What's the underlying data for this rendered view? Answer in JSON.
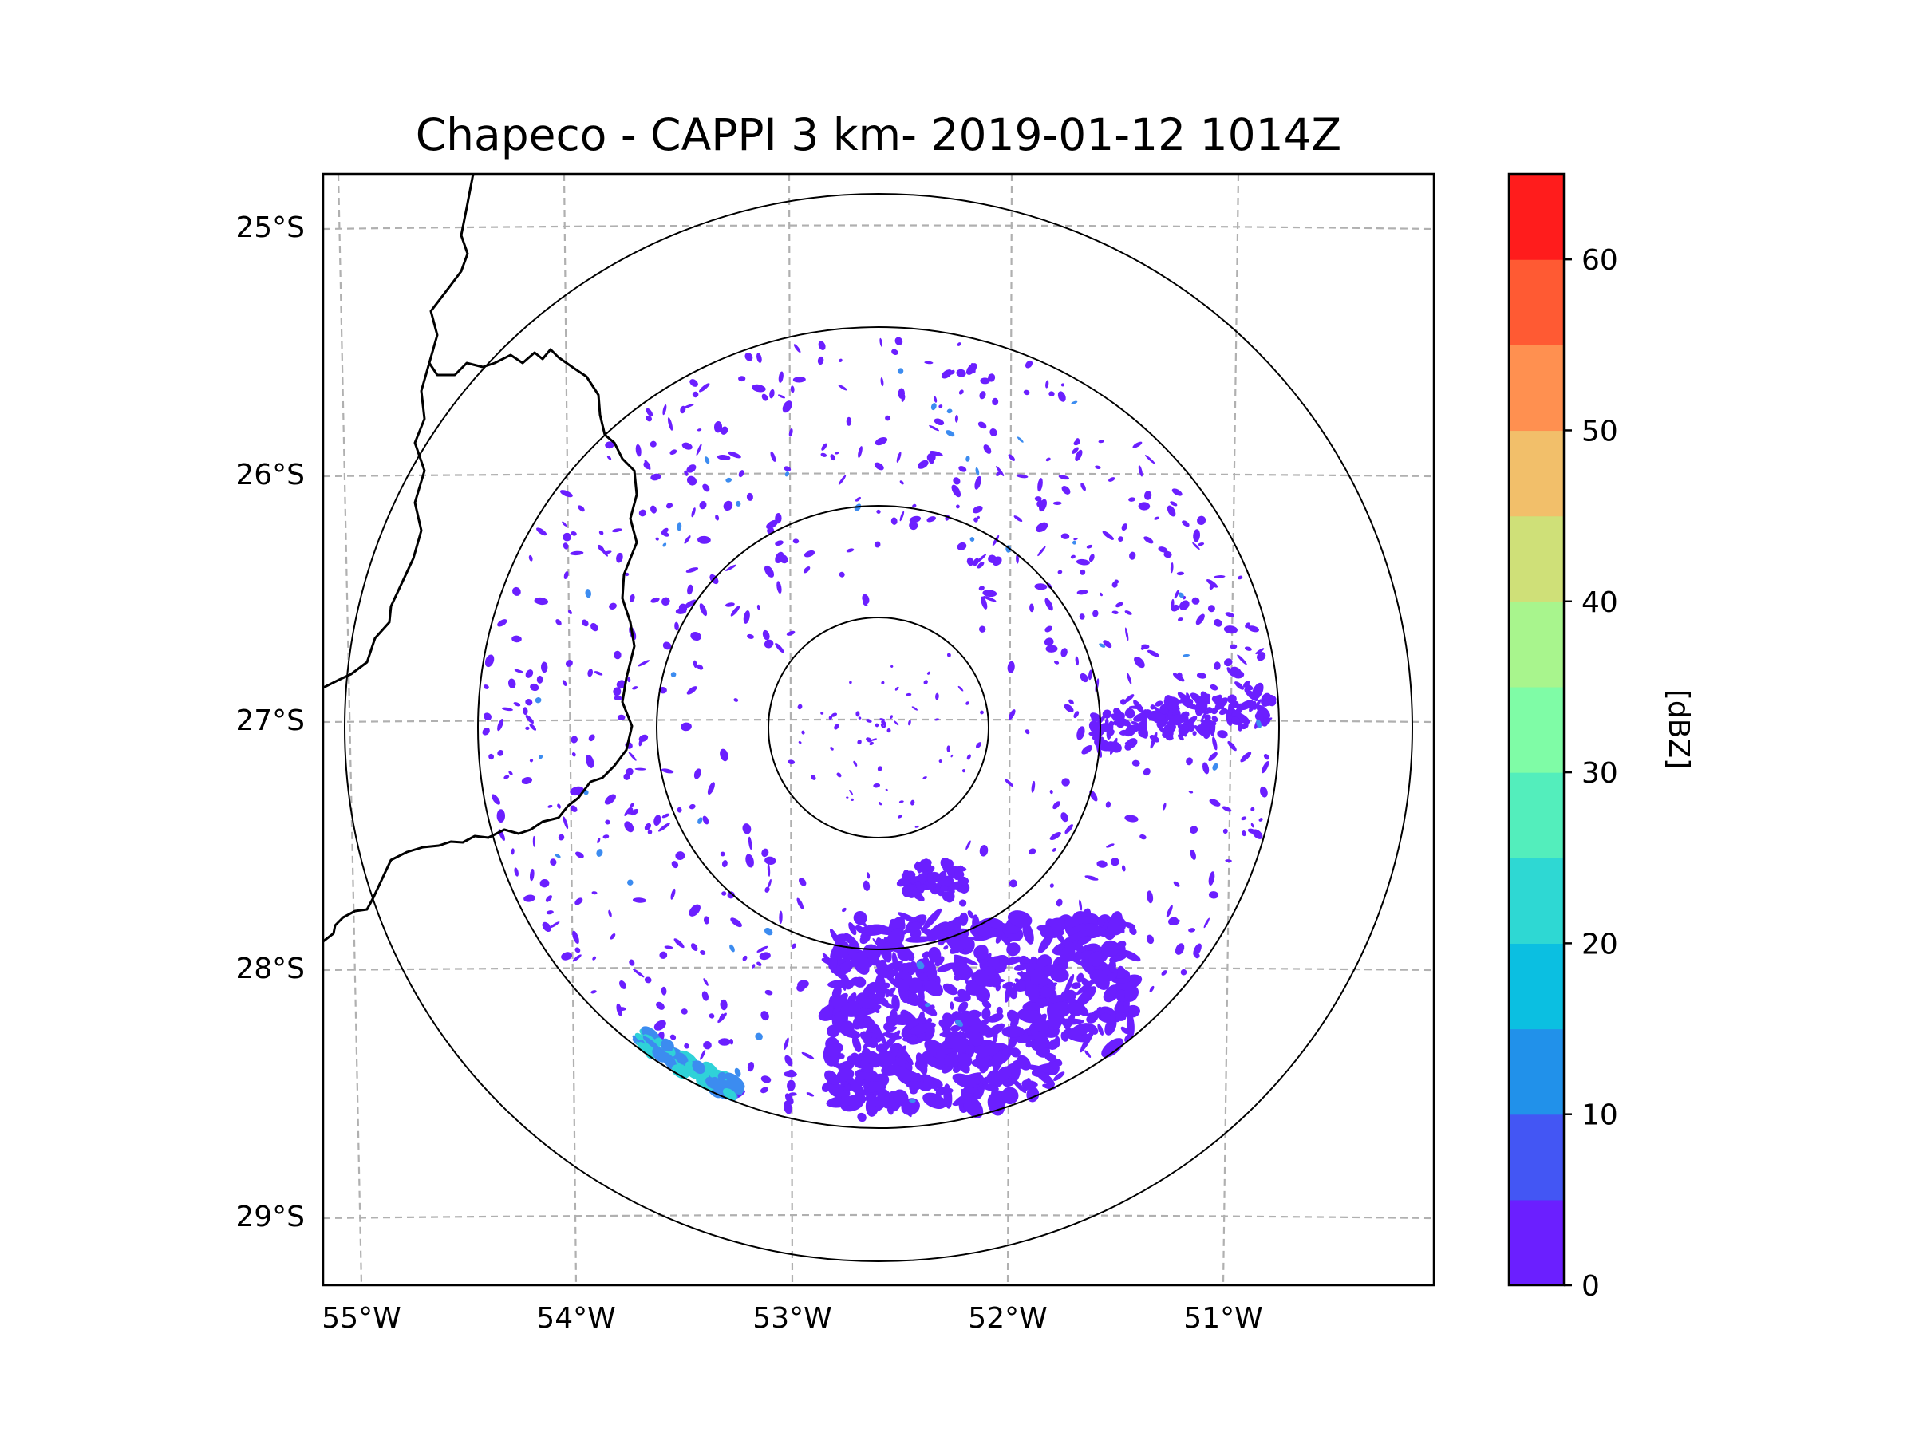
{
  "title": "Chapeco - CAPPI 3 km- 2019-01-12 1014Z",
  "map": {
    "lat_labels": [
      "25°S",
      "26°S",
      "27°S",
      "28°S",
      "29°S"
    ],
    "lon_labels": [
      "55°W",
      "54°W",
      "53°W",
      "52°W",
      "51°W"
    ],
    "lat_values": [
      -25,
      -26,
      -27,
      -28,
      -29
    ],
    "lon_values": [
      -55,
      -54,
      -53,
      -52,
      -51
    ],
    "radar_center": {
      "lon": -52.6,
      "lat": -27.02
    },
    "range_rings": 4,
    "colors": {
      "gridline": "#b0b0b0",
      "ring": "#000000",
      "border": "#000000",
      "echo_weak": "#6b1fff",
      "echo_moderate": "#3c8cf0",
      "echo_strong": "#2fd2d8"
    }
  },
  "colorbar": {
    "label": "[dBZ]",
    "tick_labels": [
      "0",
      "10",
      "20",
      "30",
      "40",
      "50",
      "60"
    ],
    "min": 0,
    "max": 65,
    "step": 5,
    "colors": [
      "#6b1fff",
      "#4356f4",
      "#2191ea",
      "#0bbfe1",
      "#2ed8d3",
      "#53eebc",
      "#7ffca6",
      "#a8f58d",
      "#cfe078",
      "#f2bf6a",
      "#ff9050",
      "#ff5a33",
      "#ff1c1c"
    ]
  }
}
